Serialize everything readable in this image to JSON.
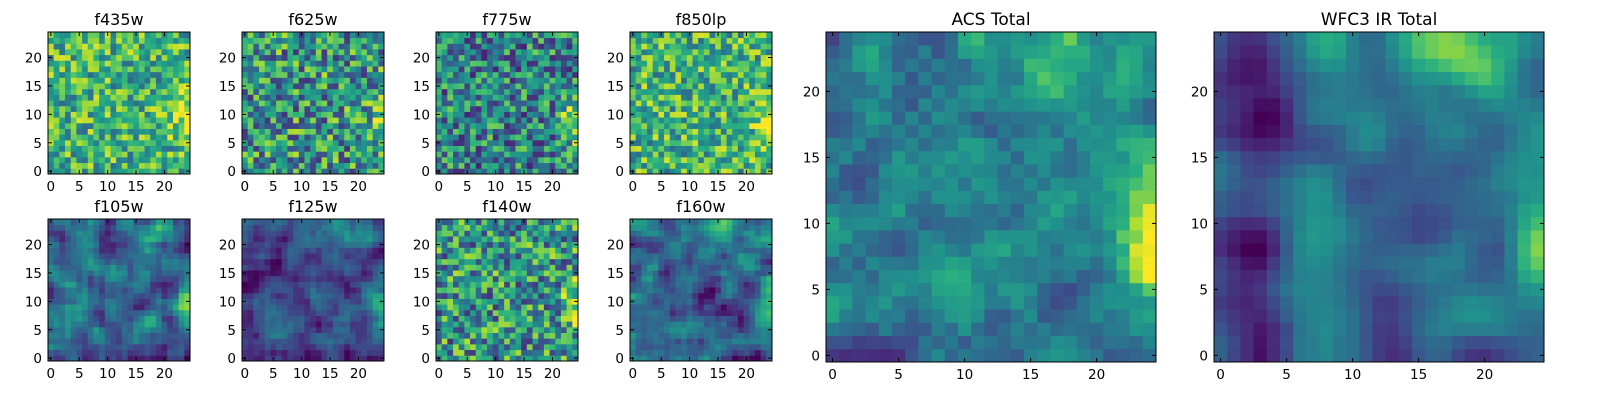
{
  "figure": {
    "colormap": "viridis",
    "grid": false,
    "axis_ticks": {
      "small": {
        "x": [
          "0",
          "5",
          "10",
          "15",
          "20"
        ],
        "y": [
          "0",
          "5",
          "10",
          "15",
          "20"
        ]
      },
      "large": {
        "x": [
          "0",
          "5",
          "10",
          "15",
          "20"
        ],
        "y": [
          "0",
          "5",
          "10",
          "15",
          "20"
        ]
      }
    }
  },
  "chart_data": [
    {
      "type": "heatmap",
      "title": "f435w",
      "xlim": [
        0,
        25
      ],
      "ylim": [
        0,
        25
      ],
      "grid_size": [
        25,
        25
      ],
      "colormap": "viridis",
      "seed": 11,
      "pattern": "noisy-bright"
    },
    {
      "type": "heatmap",
      "title": "f625w",
      "xlim": [
        0,
        25
      ],
      "ylim": [
        0,
        25
      ],
      "grid_size": [
        25,
        25
      ],
      "colormap": "viridis",
      "seed": 23,
      "pattern": "noisy-mixed"
    },
    {
      "type": "heatmap",
      "title": "f775w",
      "xlim": [
        0,
        25
      ],
      "ylim": [
        0,
        25
      ],
      "grid_size": [
        25,
        25
      ],
      "colormap": "viridis",
      "seed": 37,
      "pattern": "noisy-dim"
    },
    {
      "type": "heatmap",
      "title": "f850lp",
      "xlim": [
        0,
        25
      ],
      "ylim": [
        0,
        25
      ],
      "grid_size": [
        25,
        25
      ],
      "colormap": "viridis",
      "seed": 41,
      "pattern": "noisy-bright"
    },
    {
      "type": "heatmap",
      "title": "f105w",
      "xlim": [
        0,
        25
      ],
      "ylim": [
        0,
        25
      ],
      "grid_size": [
        25,
        25
      ],
      "colormap": "viridis",
      "seed": 53,
      "pattern": "smooth"
    },
    {
      "type": "heatmap",
      "title": "f125w",
      "xlim": [
        0,
        25
      ],
      "ylim": [
        0,
        25
      ],
      "grid_size": [
        25,
        25
      ],
      "colormap": "viridis",
      "seed": 67,
      "pattern": "smooth-dim"
    },
    {
      "type": "heatmap",
      "title": "f140w",
      "xlim": [
        0,
        25
      ],
      "ylim": [
        0,
        25
      ],
      "grid_size": [
        25,
        25
      ],
      "colormap": "viridis",
      "seed": 71,
      "pattern": "noisy-mixed"
    },
    {
      "type": "heatmap",
      "title": "f160w",
      "xlim": [
        0,
        25
      ],
      "ylim": [
        0,
        25
      ],
      "grid_size": [
        25,
        25
      ],
      "colormap": "viridis",
      "seed": 83,
      "pattern": "smooth"
    },
    {
      "type": "heatmap",
      "title": "ACS Total",
      "xlim": [
        0,
        25
      ],
      "ylim": [
        0,
        25
      ],
      "grid_size": [
        25,
        25
      ],
      "colormap": "viridis",
      "seed": 97,
      "pattern": "acs-total"
    },
    {
      "type": "heatmap",
      "title": "WFC3 IR Total",
      "xlim": [
        0,
        25
      ],
      "ylim": [
        0,
        25
      ],
      "grid_size": [
        25,
        25
      ],
      "colormap": "viridis",
      "seed": 101,
      "pattern": "wfc3-total"
    }
  ]
}
